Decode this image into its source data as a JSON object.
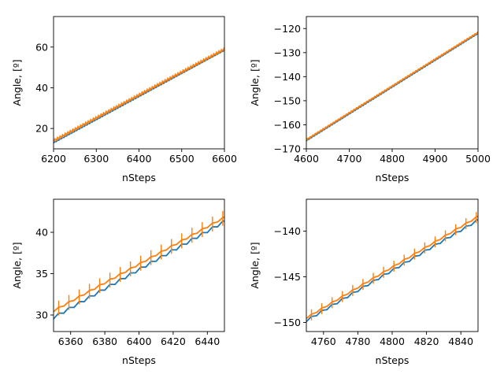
{
  "figure": {
    "rows": 2,
    "cols": 2
  },
  "colors": {
    "series_a": "#1f77b4",
    "series_b": "#ff7f0e",
    "axis": "#000000"
  },
  "chart_data": [
    {
      "type": "line",
      "title": "",
      "xlabel": "nSteps",
      "ylabel": "Angle, [º]",
      "xlim": [
        6200,
        6600
      ],
      "ylim": [
        10,
        75
      ],
      "xticks": [
        "6200",
        "6300",
        "6400",
        "6500",
        "6600"
      ],
      "xtick_values": [
        6200,
        6300,
        6400,
        6500,
        6600
      ],
      "yticks": [
        "20",
        "40",
        "60"
      ],
      "ytick_values": [
        20,
        40,
        60
      ],
      "series": [
        {
          "name": "blue",
          "color": "#1f77b4",
          "x_start": 6200,
          "x_end": 6600,
          "y_start": 13.0,
          "y_end": 58.5,
          "sawtooth_period": 6,
          "sawtooth_amp": 0.3,
          "errorbars": false
        },
        {
          "name": "orange",
          "color": "#ff7f0e",
          "x_start": 6200,
          "x_end": 6600,
          "y_start": 14.0,
          "y_end": 59.0,
          "sawtooth_period": 6,
          "sawtooth_amp": 0.3,
          "errorbars": true,
          "err_step": 6,
          "err": 1.0
        }
      ]
    },
    {
      "type": "line",
      "title": "",
      "xlabel": "nSteps",
      "ylabel": "Angle, [º]",
      "xlim": [
        4600,
        5000
      ],
      "ylim": [
        -170,
        -115
      ],
      "xticks": [
        "4600",
        "4700",
        "4800",
        "4900",
        "5000"
      ],
      "xtick_values": [
        4600,
        4700,
        4800,
        4900,
        5000
      ],
      "yticks": [
        "−170",
        "−160",
        "−150",
        "−140",
        "−130",
        "−120"
      ],
      "ytick_values": [
        -170,
        -160,
        -150,
        -140,
        -130,
        -120
      ],
      "series": [
        {
          "name": "blue",
          "color": "#1f77b4",
          "x_start": 4600,
          "x_end": 5000,
          "y_start": -166.6,
          "y_end": -122.0,
          "sawtooth_period": 6,
          "sawtooth_amp": 0.25,
          "errorbars": false
        },
        {
          "name": "orange",
          "color": "#ff7f0e",
          "x_start": 4600,
          "x_end": 5000,
          "y_start": -166.2,
          "y_end": -121.6,
          "sawtooth_period": 6,
          "sawtooth_amp": 0.25,
          "errorbars": true,
          "err_step": 6,
          "err": 0.5
        }
      ]
    },
    {
      "type": "line",
      "title": "",
      "xlabel": "nSteps",
      "ylabel": "Angle, [º]",
      "xlim": [
        6350,
        6450
      ],
      "ylim": [
        28,
        44
      ],
      "xticks": [
        "6360",
        "6380",
        "6400",
        "6420",
        "6440"
      ],
      "xtick_values": [
        6360,
        6380,
        6400,
        6420,
        6440
      ],
      "yticks": [
        "30",
        "35",
        "40"
      ],
      "ytick_values": [
        30,
        35,
        40
      ],
      "series": [
        {
          "name": "blue",
          "color": "#1f77b4",
          "x_start": 6350,
          "x_end": 6450,
          "y_start": 29.7,
          "y_end": 41.3,
          "sawtooth_period": 6,
          "sawtooth_amp": 0.35,
          "errorbars": false
        },
        {
          "name": "orange",
          "color": "#ff7f0e",
          "x_start": 6350,
          "x_end": 6450,
          "y_start": 30.5,
          "y_end": 41.8,
          "sawtooth_period": 6,
          "sawtooth_amp": 0.2,
          "errorbars": true,
          "err_step": 6,
          "err": 0.9
        }
      ]
    },
    {
      "type": "line",
      "title": "",
      "xlabel": "nSteps",
      "ylabel": "Angle, [º]",
      "xlim": [
        4750,
        4850
      ],
      "ylim": [
        -151,
        -136.5
      ],
      "xticks": [
        "4760",
        "4780",
        "4800",
        "4820",
        "4840"
      ],
      "xtick_values": [
        4760,
        4780,
        4800,
        4820,
        4840
      ],
      "yticks": [
        "−150",
        "−145",
        "−140"
      ],
      "ytick_values": [
        -150,
        -145,
        -140
      ],
      "series": [
        {
          "name": "blue",
          "color": "#1f77b4",
          "x_start": 4750,
          "x_end": 4850,
          "y_start": -149.8,
          "y_end": -138.8,
          "sawtooth_period": 6,
          "sawtooth_amp": 0.25,
          "errorbars": false
        },
        {
          "name": "orange",
          "color": "#ff7f0e",
          "x_start": 4750,
          "x_end": 4850,
          "y_start": -149.5,
          "y_end": -138.4,
          "sawtooth_period": 6,
          "sawtooth_amp": 0.15,
          "errorbars": true,
          "err_step": 6,
          "err": 0.6
        }
      ]
    }
  ]
}
